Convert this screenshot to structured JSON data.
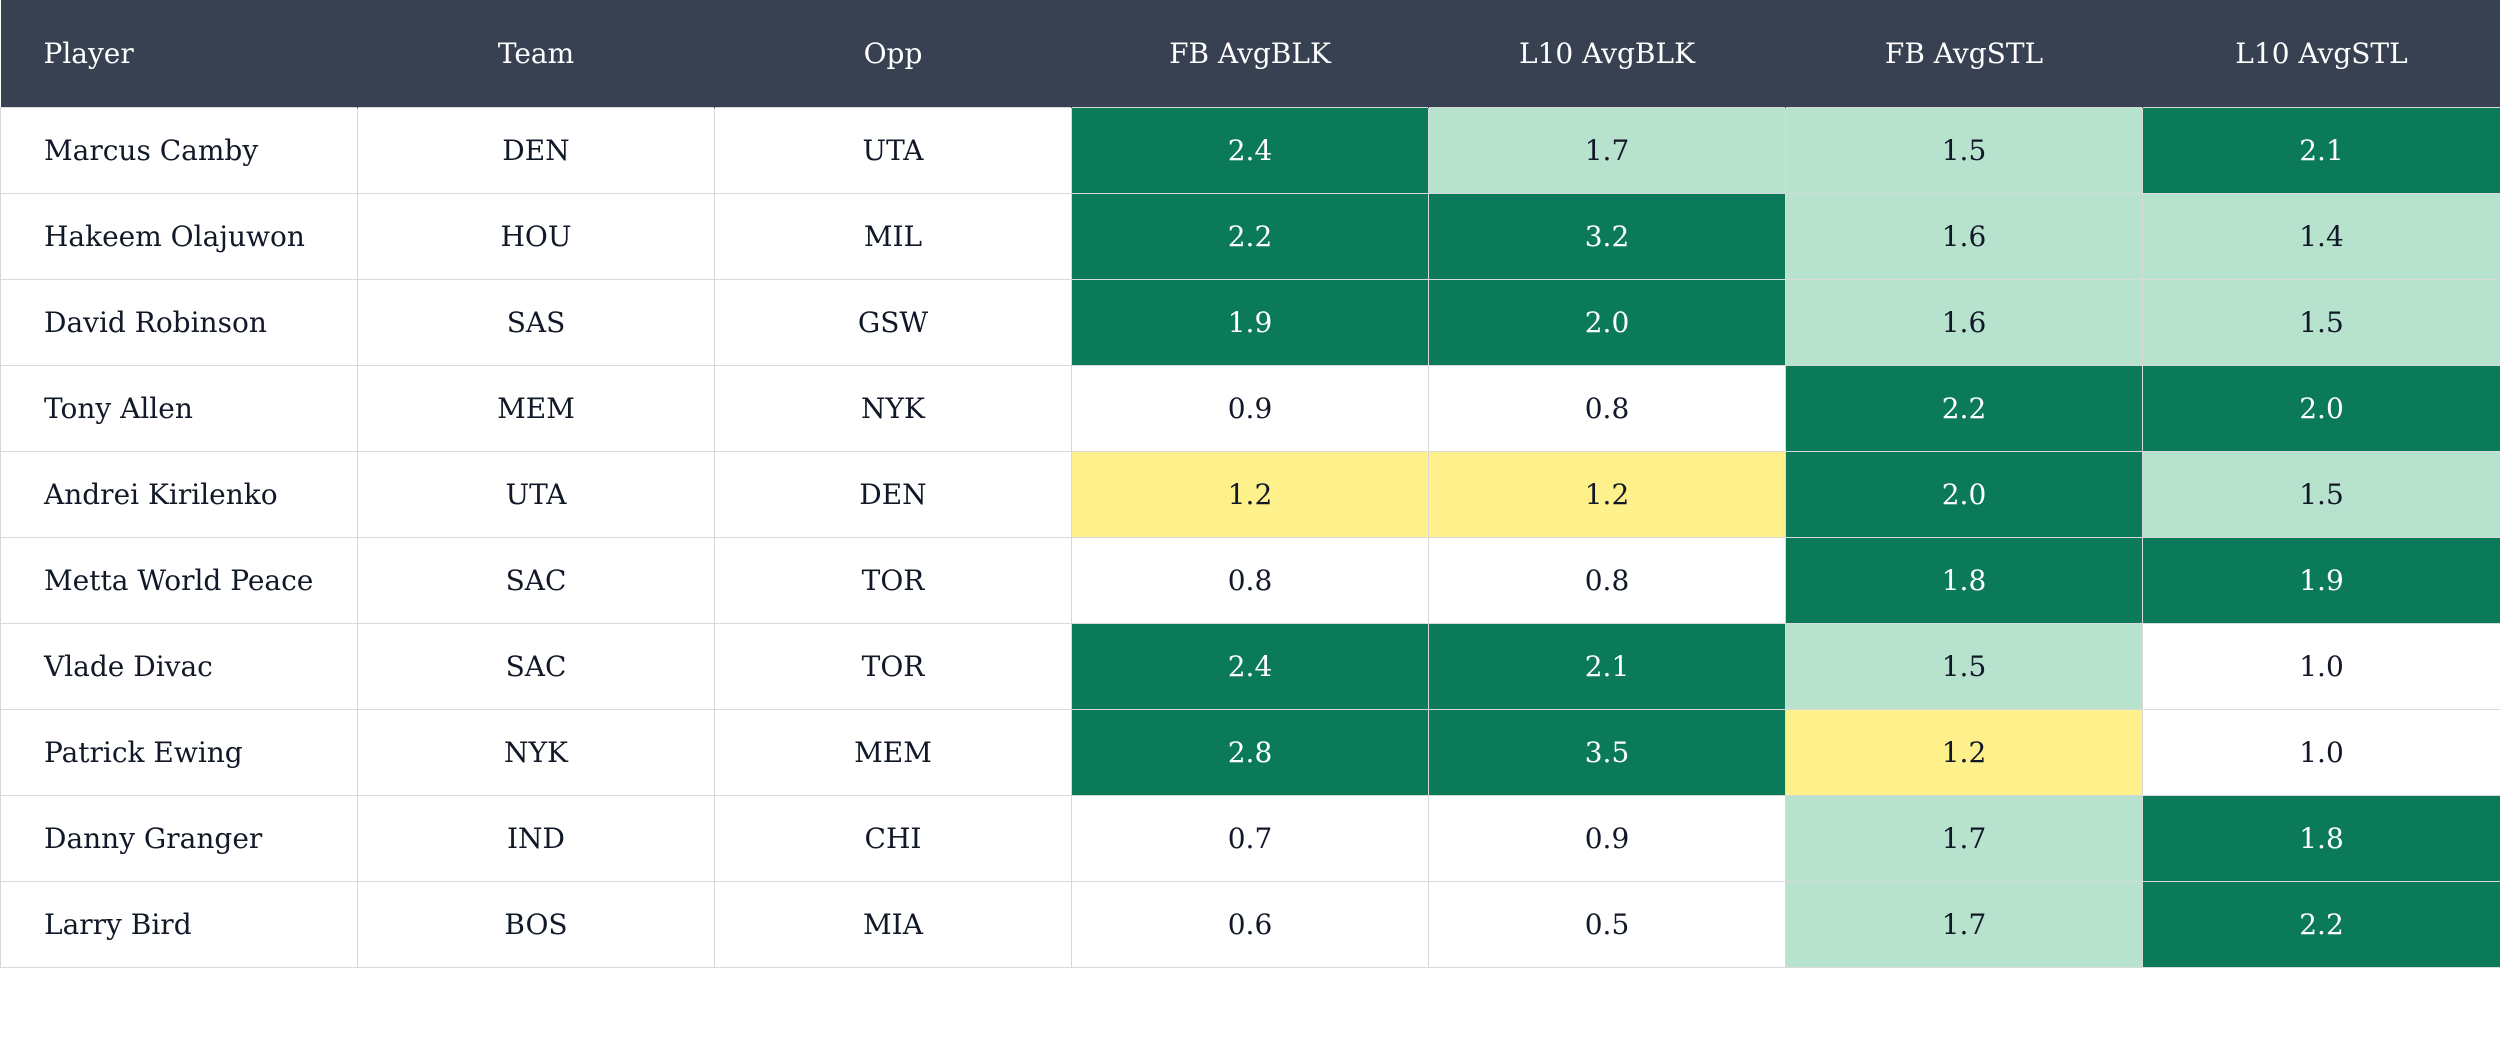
{
  "chart_data": {
    "type": "table",
    "columns": [
      "Player",
      "Team",
      "Opp",
      "FB AvgBLK",
      "L10 AvgBLK",
      "FB AvgSTL",
      "L10 AvgSTL"
    ],
    "rows": [
      {
        "player": "Marcus Camby",
        "team": "DEN",
        "opp": "UTA",
        "fb_blk": "2.4",
        "l10_blk": "1.7",
        "fb_stl": "1.5",
        "l10_stl": "2.1"
      },
      {
        "player": "Hakeem Olajuwon",
        "team": "HOU",
        "opp": "MIL",
        "fb_blk": "2.2",
        "l10_blk": "3.2",
        "fb_stl": "1.6",
        "l10_stl": "1.4"
      },
      {
        "player": "David Robinson",
        "team": "SAS",
        "opp": "GSW",
        "fb_blk": "1.9",
        "l10_blk": "2.0",
        "fb_stl": "1.6",
        "l10_stl": "1.5"
      },
      {
        "player": "Tony Allen",
        "team": "MEM",
        "opp": "NYK",
        "fb_blk": "0.9",
        "l10_blk": "0.8",
        "fb_stl": "2.2",
        "l10_stl": "2.0"
      },
      {
        "player": "Andrei Kirilenko",
        "team": "UTA",
        "opp": "DEN",
        "fb_blk": "1.2",
        "l10_blk": "1.2",
        "fb_stl": "2.0",
        "l10_stl": "1.5"
      },
      {
        "player": "Metta World Peace",
        "team": "SAC",
        "opp": "TOR",
        "fb_blk": "0.8",
        "l10_blk": "0.8",
        "fb_stl": "1.8",
        "l10_stl": "1.9"
      },
      {
        "player": "Vlade Divac",
        "team": "SAC",
        "opp": "TOR",
        "fb_blk": "2.4",
        "l10_blk": "2.1",
        "fb_stl": "1.5",
        "l10_stl": "1.0"
      },
      {
        "player": "Patrick Ewing",
        "team": "NYK",
        "opp": "MEM",
        "fb_blk": "2.8",
        "l10_blk": "3.5",
        "fb_stl": "1.2",
        "l10_stl": "1.0"
      },
      {
        "player": "Danny Granger",
        "team": "IND",
        "opp": "CHI",
        "fb_blk": "0.7",
        "l10_blk": "0.9",
        "fb_stl": "1.7",
        "l10_stl": "1.8"
      },
      {
        "player": "Larry Bird",
        "team": "BOS",
        "opp": "MIA",
        "fb_blk": "0.6",
        "l10_blk": "0.5",
        "fb_stl": "1.7",
        "l10_stl": "2.2"
      }
    ],
    "shading": [
      [
        "dark",
        "light",
        "light",
        "dark"
      ],
      [
        "dark",
        "dark",
        "light",
        "light"
      ],
      [
        "dark",
        "dark",
        "light",
        "light"
      ],
      [
        "plain",
        "plain",
        "dark",
        "dark"
      ],
      [
        "yellow",
        "yellow",
        "dark",
        "light"
      ],
      [
        "plain",
        "plain",
        "dark",
        "dark"
      ],
      [
        "dark",
        "dark",
        "light",
        "plain"
      ],
      [
        "dark",
        "dark",
        "yellow",
        "plain"
      ],
      [
        "plain",
        "plain",
        "light",
        "dark"
      ],
      [
        "plain",
        "plain",
        "light",
        "dark"
      ]
    ],
    "colors": {
      "header_bg": "#374151",
      "dark": "#0b7a58",
      "light": "#b7e2cd",
      "yellow": "#fef08a",
      "plain": "#ffffff"
    }
  }
}
